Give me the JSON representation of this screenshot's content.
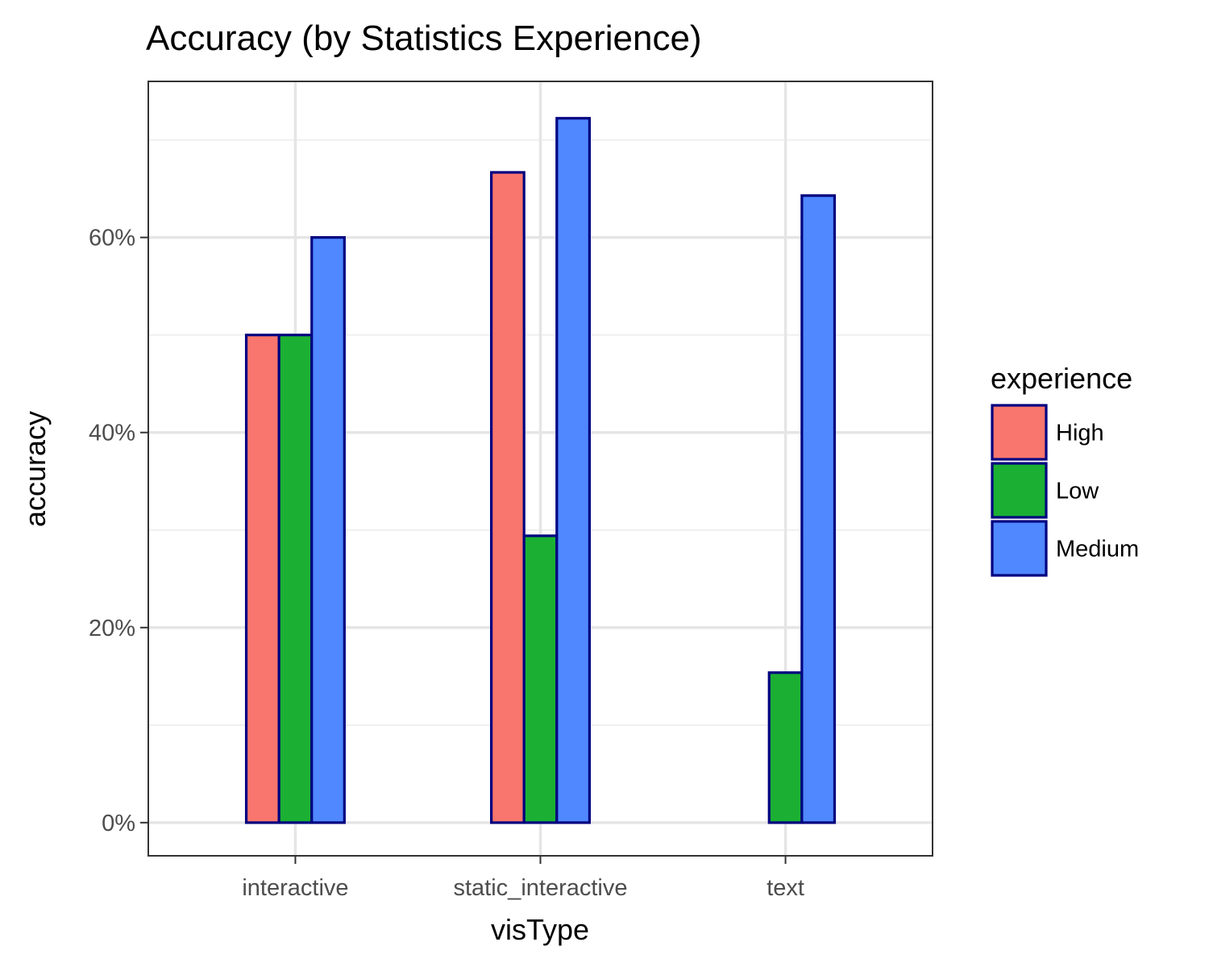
{
  "chart_data": {
    "type": "bar",
    "title": "Accuracy (by Statistics Experience)",
    "xlabel": "visType",
    "ylabel": "accuracy",
    "categories": [
      "interactive",
      "static_interactive",
      "text"
    ],
    "series": [
      {
        "name": "High",
        "values": [
          0.5,
          0.6667,
          0.0
        ]
      },
      {
        "name": "Low",
        "values": [
          0.5,
          0.2941,
          0.1538
        ]
      },
      {
        "name": "Medium",
        "values": [
          0.6,
          0.7222,
          0.6429
        ]
      }
    ],
    "ylim": [
      -0.034,
      0.76
    ],
    "y_ticks": [
      0,
      0.2,
      0.4,
      0.6
    ],
    "y_tick_labels": [
      "0%",
      "20%",
      "40%",
      "60%"
    ],
    "legend": {
      "title": "experience",
      "position": "right"
    },
    "grid": true,
    "colors": {
      "High": "#F8766D",
      "Low": "#1BB033",
      "Medium": "#5088FF",
      "bar_outline": "#00007F",
      "panel_border": "#333333",
      "grid_major": "#e5e5e5",
      "grid_minor": "#efefef"
    }
  }
}
